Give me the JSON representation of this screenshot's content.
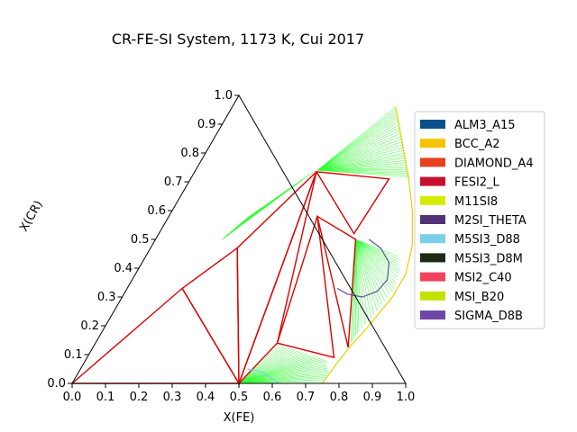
{
  "chart_data": {
    "type": "ternary",
    "title": "CR-FE-SI System, 1173 K, Cui 2017",
    "xlabel": "X(FE)",
    "ylabel": "X(CR)",
    "xlim": [
      0,
      1
    ],
    "ylim": [
      0,
      1
    ],
    "x_ticks": [
      "0.0",
      "0.1",
      "0.2",
      "0.3",
      "0.4",
      "0.5",
      "0.6",
      "0.7",
      "0.8",
      "0.9",
      "1.0"
    ],
    "y_ticks": [
      "0.0",
      "0.1",
      "0.2",
      "0.3",
      "0.4",
      "0.5",
      "0.6",
      "0.7",
      "0.8",
      "0.9",
      "1.0"
    ],
    "legend_position": "right",
    "legend": [
      {
        "name": "ALM3_A15",
        "color": "#0b4f8a"
      },
      {
        "name": "BCC_A2",
        "color": "#f5c400"
      },
      {
        "name": "DIAMOND_A4",
        "color": "#e8401c"
      },
      {
        "name": "FESI2_L",
        "color": "#c8102e"
      },
      {
        "name": "M11SI8",
        "color": "#d4ec00"
      },
      {
        "name": "M2SI_THETA",
        "color": "#533278"
      },
      {
        "name": "M5SI3_D88",
        "color": "#7ccfe9"
      },
      {
        "name": "M5SI3_D8M",
        "color": "#1c2a16"
      },
      {
        "name": "MSI2_C40",
        "color": "#f2425e"
      },
      {
        "name": "MSI_B20",
        "color": "#c3e200"
      },
      {
        "name": "SIGMA_D8B",
        "color": "#6f48a7"
      }
    ],
    "colors": {
      "tie_line": "#33ff33",
      "boundary": "#dd0000",
      "bcc_boundary": "#e8d100",
      "theta_boundary": "#5a4f9a",
      "m5si3_boundary": "#7ccfe9",
      "frame": "#000000"
    },
    "triangles": [
      [
        [
          0.0,
          0.0
        ],
        [
          0.5,
          0.0
        ],
        [
          0.165,
          0.33
        ]
      ],
      [
        [
          0.165,
          0.33
        ],
        [
          0.5,
          0.0
        ],
        [
          0.26,
          0.47
        ]
      ],
      [
        [
          0.26,
          0.47
        ],
        [
          0.5,
          0.0
        ],
        [
          0.365,
          0.735
        ]
      ],
      [
        [
          0.5,
          0.0
        ],
        [
          0.545,
          0.14
        ],
        [
          0.365,
          0.735
        ]
      ],
      [
        [
          0.545,
          0.14
        ],
        [
          0.74,
          0.09
        ],
        [
          0.445,
          0.58
        ]
      ],
      [
        [
          0.445,
          0.58
        ],
        [
          0.765,
          0.125
        ],
        [
          0.6,
          0.5
        ]
      ],
      [
        [
          0.365,
          0.735
        ],
        [
          0.595,
          0.71
        ],
        [
          0.585,
          0.52
        ]
      ]
    ],
    "boundaries": [
      {
        "kind": "bcc",
        "points": [
          [
            0.49,
            0.96
          ],
          [
            0.66,
            0.7
          ],
          [
            0.72,
            0.6
          ],
          [
            0.78,
            0.48
          ],
          [
            0.81,
            0.38
          ],
          [
            0.81,
            0.3
          ],
          [
            0.79,
            0.2
          ],
          [
            0.77,
            0.13
          ],
          [
            0.76,
            0.08
          ],
          [
            0.75,
            0.0
          ]
        ]
      },
      {
        "kind": "theta",
        "points": [
          [
            0.64,
            0.5
          ],
          [
            0.69,
            0.47
          ],
          [
            0.74,
            0.42
          ],
          [
            0.765,
            0.36
          ],
          [
            0.755,
            0.32
          ],
          [
            0.72,
            0.3
          ],
          [
            0.67,
            0.31
          ],
          [
            0.63,
            0.33
          ]
        ]
      },
      {
        "kind": "m5si3",
        "points": [
          [
            0.5,
            0.05
          ],
          [
            0.55,
            0.04
          ],
          [
            0.62,
            0.0
          ]
        ]
      }
    ],
    "tie_fans": [
      {
        "from": [
          0.365,
          0.74
        ],
        "to": [
          [
            0.49,
            0.96
          ],
          [
            0.52,
            0.92
          ],
          [
            0.56,
            0.86
          ],
          [
            0.6,
            0.8
          ],
          [
            0.63,
            0.75
          ],
          [
            0.66,
            0.71
          ]
        ]
      },
      {
        "from": [
          0.5,
          0.0
        ],
        "to": [
          [
            0.545,
            0.14
          ],
          [
            0.6,
            0.12
          ],
          [
            0.66,
            0.1
          ],
          [
            0.72,
            0.08
          ],
          [
            0.75,
            0.04
          ],
          [
            0.75,
            0.0
          ]
        ]
      },
      {
        "from": [
          0.2,
          0.5
        ],
        "to": [
          [
            0.22,
            0.54
          ],
          [
            0.24,
            0.58
          ],
          [
            0.27,
            0.62
          ],
          [
            0.3,
            0.66
          ],
          [
            0.33,
            0.7
          ],
          [
            0.36,
            0.74
          ]
        ]
      },
      {
        "from": [
          0.6,
          0.5
        ],
        "to": [
          [
            0.76,
            0.44
          ],
          [
            0.79,
            0.38
          ],
          [
            0.8,
            0.32
          ],
          [
            0.79,
            0.25
          ],
          [
            0.77,
            0.18
          ],
          [
            0.765,
            0.13
          ]
        ]
      }
    ]
  }
}
